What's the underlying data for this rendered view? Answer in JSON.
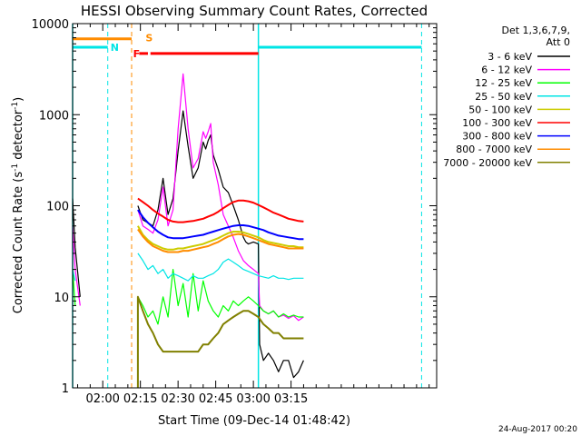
{
  "chart_data": {
    "type": "line",
    "title": "HESSI Observing Summary Count Rates, Corrected",
    "xlabel": "Start Time (09-Dec-14 01:48:42)",
    "ylabel_main": "Corrected Count Rate (s",
    "ylabel_sup1": "-1",
    "ylabel_mid": " detector",
    "ylabel_sup2": "-1",
    "ylabel_end": ")",
    "xlim": [
      108,
      253
    ],
    "ylim": [
      1,
      10000
    ],
    "yscale": "log",
    "grid": false,
    "x_ticks": [
      {
        "v": 120,
        "label": "02:00"
      },
      {
        "v": 135,
        "label": "02:15"
      },
      {
        "v": 150,
        "label": "02:30"
      },
      {
        "v": 165,
        "label": "02:45"
      },
      {
        "v": 180,
        "label": "03:00"
      },
      {
        "v": 195,
        "label": "03:15"
      }
    ],
    "y_ticks": [
      {
        "v": 1,
        "label": "1"
      },
      {
        "v": 10,
        "label": "10"
      },
      {
        "v": 100,
        "label": "100"
      },
      {
        "v": 1000,
        "label": "1000"
      },
      {
        "v": 10000,
        "label": "10000"
      }
    ],
    "legend": {
      "position": "right",
      "header_line1": "Det 1,3,6,7,9,",
      "header_line2": "Att 0"
    },
    "markers": [
      {
        "label": "N",
        "color": "#00e5e5",
        "x": 122,
        "y": 5500
      },
      {
        "label": "S",
        "color": "#ff8c00",
        "x": 136,
        "y": 7000
      },
      {
        "label": "F",
        "color": "#ff0000",
        "x": 131,
        "y": 4700
      }
    ],
    "flags": [
      {
        "name": "N",
        "color": "#00e5e5",
        "y": 5500,
        "segments": [
          [
            108,
            122
          ],
          [
            182,
            247
          ]
        ]
      },
      {
        "name": "S",
        "color": "#ff8c00",
        "y": 6800,
        "segments": [
          [
            108,
            131.5
          ]
        ]
      },
      {
        "name": "F",
        "color": "#ff0000",
        "y": 4700,
        "segments": [
          [
            134.5,
            138
          ],
          [
            139,
            182
          ]
        ]
      }
    ],
    "vlines_solid": [
      {
        "x": 108,
        "color": "#00e5e5"
      },
      {
        "x": 182,
        "color": "#00e5e5"
      }
    ],
    "vlines_dashed": [
      {
        "x": 122,
        "color": "#00e5e5"
      },
      {
        "x": 131.5,
        "color": "#ff8c00"
      },
      {
        "x": 247,
        "color": "#00e5e5"
      }
    ],
    "series": [
      {
        "name": "3 - 6 keV",
        "color": "#000000",
        "x": [
          108,
          109,
          111,
          130.5,
          134,
          136,
          138,
          140,
          142,
          144,
          146,
          148,
          150,
          152,
          154,
          156,
          158,
          160,
          161,
          162,
          163,
          164,
          166,
          168,
          170,
          172,
          174,
          176,
          177,
          178,
          180,
          182,
          182.5,
          184,
          186,
          188,
          190,
          192,
          194,
          196,
          198,
          200
        ],
        "y": [
          120,
          35,
          10,
          null,
          100,
          70,
          65,
          60,
          90,
          200,
          80,
          120,
          400,
          1100,
          450,
          200,
          260,
          500,
          420,
          520,
          600,
          360,
          250,
          160,
          140,
          100,
          70,
          45,
          40,
          38,
          40,
          38,
          3,
          2,
          2.4,
          2,
          1.5,
          2,
          2,
          1.3,
          1.5,
          2
        ]
      },
      {
        "name": "6 - 12 keV",
        "color": "#ff00ff",
        "x": [
          108,
          109,
          111,
          130.5,
          134,
          136,
          138,
          140,
          142,
          144,
          146,
          148,
          150,
          152,
          154,
          156,
          158,
          160,
          161,
          162,
          163,
          164,
          166,
          168,
          170,
          172,
          174,
          176,
          178,
          180,
          182,
          182.5,
          184,
          186,
          188,
          190,
          192,
          194,
          196,
          198,
          200
        ],
        "y": [
          60,
          20,
          8,
          null,
          90,
          60,
          55,
          50,
          70,
          160,
          60,
          90,
          700,
          2800,
          700,
          260,
          330,
          650,
          550,
          650,
          800,
          300,
          170,
          80,
          60,
          45,
          32,
          25,
          22,
          20,
          18,
          8,
          7,
          6.5,
          7,
          6,
          6.3,
          5.8,
          6.2,
          5.5,
          6
        ]
      },
      {
        "name": "12 - 25 keV",
        "color": "#00ff00",
        "x": [
          108,
          109,
          130.5,
          134,
          136,
          138,
          140,
          142,
          144,
          146,
          148,
          150,
          152,
          154,
          156,
          158,
          160,
          162,
          164,
          166,
          168,
          170,
          172,
          174,
          176,
          178,
          180,
          182,
          184,
          186,
          188,
          190,
          192,
          194,
          196,
          198,
          200
        ],
        "y": [
          20,
          8,
          null,
          10,
          8,
          6,
          7,
          5,
          10,
          6,
          20,
          8,
          14,
          6,
          18,
          7,
          15,
          9,
          7,
          6,
          8,
          7,
          9,
          8,
          9,
          10,
          9,
          8,
          7,
          6.5,
          7,
          6,
          6.5,
          6,
          6.3,
          6,
          6
        ]
      },
      {
        "name": "25 - 50 keV",
        "color": "#00e5e5",
        "x": [
          108,
          109,
          130.5,
          134,
          136,
          138,
          140,
          142,
          144,
          146,
          148,
          150,
          152,
          154,
          156,
          158,
          160,
          162,
          164,
          166,
          168,
          170,
          172,
          174,
          176,
          178,
          180,
          182,
          184,
          186,
          188,
          190,
          192,
          194,
          196,
          198,
          200
        ],
        "y": [
          20,
          15,
          null,
          30,
          25,
          20,
          22,
          18,
          20,
          16,
          18,
          17,
          16,
          15,
          17,
          16,
          16,
          17,
          18,
          20,
          24,
          26,
          24,
          22,
          20,
          19,
          18,
          17,
          16.5,
          16,
          17,
          16,
          16,
          15.5,
          16,
          16,
          16
        ]
      },
      {
        "name": "50 - 100 keV",
        "color": "#cccc00",
        "x": [
          130.5,
          134,
          136,
          138,
          140,
          142,
          144,
          146,
          148,
          150,
          152,
          154,
          156,
          158,
          160,
          162,
          164,
          166,
          168,
          170,
          172,
          174,
          176,
          178,
          180,
          182,
          184,
          186,
          188,
          190,
          192,
          194,
          196,
          198,
          200
        ],
        "y": [
          null,
          60,
          48,
          42,
          38,
          36,
          34,
          33,
          33,
          34,
          34,
          35,
          36,
          37,
          38,
          40,
          42,
          44,
          47,
          50,
          52,
          52,
          51,
          49,
          47,
          45,
          42,
          40,
          39,
          38,
          37,
          36,
          36,
          35,
          35
        ]
      },
      {
        "name": "100 - 300 keV",
        "color": "#ff0000",
        "x": [
          130.5,
          134,
          136,
          138,
          140,
          142,
          144,
          146,
          148,
          150,
          152,
          154,
          156,
          158,
          160,
          162,
          164,
          166,
          168,
          170,
          172,
          174,
          176,
          178,
          180,
          182,
          184,
          186,
          188,
          190,
          192,
          194,
          196,
          198,
          200
        ],
        "y": [
          null,
          120,
          110,
          100,
          90,
          82,
          76,
          70,
          67,
          66,
          66,
          67,
          68,
          70,
          72,
          76,
          80,
          86,
          94,
          102,
          110,
          114,
          114,
          112,
          108,
          102,
          96,
          90,
          84,
          80,
          76,
          72,
          70,
          68,
          67
        ]
      },
      {
        "name": "300 - 800 keV",
        "color": "#0000ff",
        "x": [
          130.5,
          134,
          136,
          138,
          140,
          142,
          144,
          146,
          148,
          150,
          152,
          154,
          156,
          158,
          160,
          162,
          164,
          166,
          168,
          170,
          172,
          174,
          176,
          178,
          180,
          182,
          184,
          186,
          188,
          190,
          192,
          194,
          196,
          198,
          200
        ],
        "y": [
          null,
          90,
          75,
          65,
          58,
          52,
          48,
          45,
          44,
          44,
          44,
          45,
          46,
          47,
          48,
          50,
          52,
          54,
          56,
          58,
          60,
          61,
          61,
          60,
          58,
          56,
          54,
          51,
          49,
          47,
          46,
          45,
          44,
          43,
          43
        ]
      },
      {
        "name": "800 - 7000 keV",
        "color": "#ff8c00",
        "x": [
          130.5,
          134,
          136,
          138,
          140,
          142,
          144,
          146,
          148,
          150,
          152,
          154,
          156,
          158,
          160,
          162,
          164,
          166,
          168,
          170,
          172,
          174,
          176,
          178,
          180,
          182,
          184,
          186,
          188,
          190,
          192,
          194,
          196,
          198,
          200
        ],
        "y": [
          null,
          55,
          46,
          40,
          36,
          34,
          32,
          31,
          31,
          31,
          32,
          32,
          33,
          34,
          35,
          36,
          38,
          40,
          43,
          46,
          48,
          49,
          48,
          46,
          44,
          42,
          40,
          38,
          37,
          36,
          35,
          34,
          34,
          34,
          34
        ]
      },
      {
        "name": "7000 - 20000 keV",
        "color": "#808000",
        "x": [
          130.5,
          134,
          134.01,
          136,
          138,
          140,
          142,
          144,
          146,
          148,
          150,
          152,
          154,
          156,
          158,
          160,
          162,
          164,
          166,
          168,
          170,
          172,
          174,
          176,
          178,
          180,
          182,
          184,
          186,
          188,
          190,
          192,
          194,
          196,
          198,
          200
        ],
        "y": [
          null,
          1,
          10,
          7,
          5,
          4,
          3,
          2.5,
          2.5,
          2.5,
          2.5,
          2.5,
          2.5,
          2.5,
          2.5,
          3,
          3,
          3.5,
          4,
          5,
          5.5,
          6,
          6.5,
          7,
          7,
          6.5,
          6,
          5,
          4.5,
          4,
          4,
          3.5,
          3.5,
          3.5,
          3.5,
          3.5
        ]
      }
    ]
  },
  "footer": {
    "date_stamp": "24-Aug-2017 00:20"
  }
}
